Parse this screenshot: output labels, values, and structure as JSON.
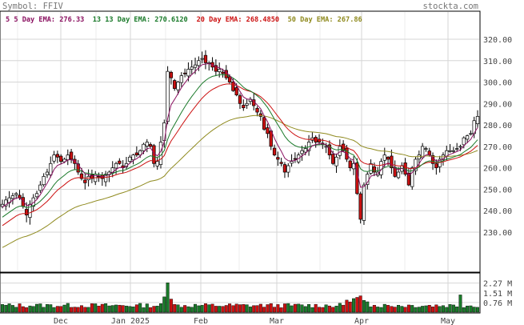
{
  "header": {
    "symbol_label": "Symbol: FFIV",
    "site": "stockta.com"
  },
  "legend": [
    {
      "label": "5 Day EMA:",
      "value": "276.33",
      "color": "#8a1060"
    },
    {
      "label": "13 Day EMA:",
      "value": "270.6120",
      "color": "#1a7a2a"
    },
    {
      "label": "Day EMA:",
      "value": "268.4850",
      "color": "#cc1111",
      "prefix": "20"
    },
    {
      "label": "Day EMA:",
      "value": "267.86",
      "color": "#8f8a1e",
      "prefix": "50"
    }
  ],
  "colors": {
    "up": "#ffffff",
    "down": "#cc1111",
    "vol_up": "#1a7a2a",
    "vol_down": "#cc1111",
    "ema5": "#8a1060",
    "ema13": "#1a7a2a",
    "ema20": "#cc1111",
    "ema50": "#8f8a1e"
  },
  "chart_data": {
    "type": "line",
    "title": "Symbol: FFIV",
    "y_axis": {
      "ticks": [
        230,
        240,
        250,
        260,
        270,
        280,
        290,
        300,
        310,
        320
      ],
      "tick_labels": [
        "230.00",
        "240.00",
        "250.00",
        "260.00",
        "270.00",
        "280.00",
        "290.00",
        "300.00",
        "310.00",
        "320.00"
      ],
      "range": [
        220,
        325
      ]
    },
    "volume_axis": {
      "ticks": [
        0.76,
        1.51,
        2.27
      ],
      "tick_labels": [
        "0.76 M",
        "1.51 M",
        "2.27 M"
      ],
      "range": [
        0,
        2.5
      ]
    },
    "x_axis": {
      "months": [
        "Dec",
        "Jan 2025",
        "Feb",
        "Mar",
        "Apr",
        "May"
      ]
    },
    "grid": true,
    "price_closes": [
      243,
      245,
      246,
      247,
      248,
      246,
      242,
      238,
      243,
      246,
      248,
      252,
      256,
      258,
      262,
      266,
      265,
      263,
      264,
      266,
      264,
      262,
      258,
      255,
      253,
      256,
      255,
      257,
      256,
      255,
      257,
      258,
      260,
      262,
      262,
      260,
      262,
      265,
      266,
      266,
      268,
      271,
      272,
      270,
      262,
      263,
      272,
      281,
      305,
      302,
      297,
      300,
      303,
      304,
      306,
      307,
      308,
      310,
      311,
      309,
      309,
      307,
      305,
      306,
      304,
      302,
      300,
      296,
      294,
      290,
      288,
      290,
      292,
      289,
      286,
      284,
      278,
      276,
      270,
      266,
      264,
      262,
      258,
      261,
      263,
      264,
      266,
      268,
      269,
      272,
      274,
      272,
      272,
      271,
      270,
      266,
      262,
      265,
      270,
      268,
      264,
      260,
      262,
      248,
      236,
      252,
      257,
      262,
      258,
      258,
      263,
      266,
      264,
      260,
      256,
      258,
      261,
      257,
      252,
      260,
      264,
      266,
      270,
      269,
      266,
      262,
      260,
      264,
      266,
      268,
      268,
      268,
      269,
      270,
      274,
      275,
      276,
      282,
      284
    ],
    "series": [
      {
        "name": "5 Day EMA",
        "last": 276.33
      },
      {
        "name": "13 Day EMA",
        "last": 270.612
      },
      {
        "name": "20 Day EMA",
        "last": 268.485
      },
      {
        "name": "50 Day EMA",
        "last": 267.86
      }
    ]
  }
}
